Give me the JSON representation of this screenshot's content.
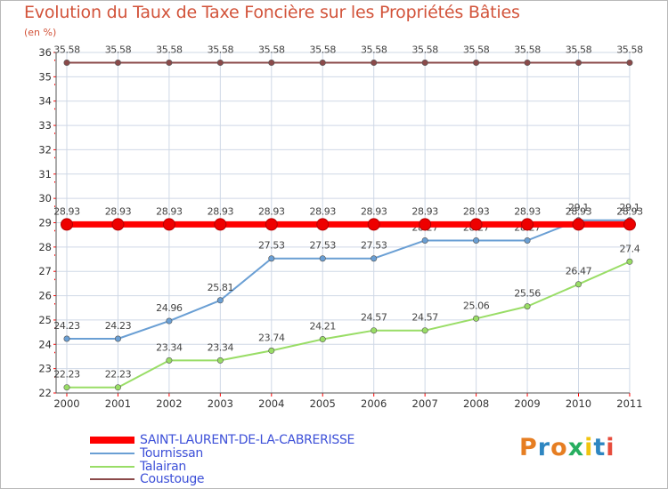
{
  "title": "Evolution du Taux de Taxe Foncière sur les Propriétés Bâties",
  "unit": "(en %)",
  "logo_text": "Proxiti",
  "logo_colors": [
    "#e67e22",
    "#2e86c1",
    "#e67e22",
    "#27ae60",
    "#f1c40f",
    "#2e86c1",
    "#e74c3c"
  ],
  "chart_data": {
    "type": "line",
    "title": "Evolution du Taux de Taxe Foncière sur les Propriétés Bâties",
    "ylabel": "(en %)",
    "xlabel": "",
    "x": [
      "2000",
      "2001",
      "2002",
      "2003",
      "2004",
      "2005",
      "2006",
      "2007",
      "2008",
      "2009",
      "2010",
      "2011"
    ],
    "ylim": [
      22,
      36
    ],
    "yticks": [
      "22",
      "23",
      "24",
      "25",
      "26",
      "27",
      "28",
      "29",
      "30",
      "31",
      "32",
      "33",
      "34",
      "35",
      "36"
    ],
    "grid": true,
    "legend_position": "bottom-left",
    "series": [
      {
        "name": "SAINT-LAURENT-DE-LA-CABRERISSE",
        "color": "#ff0000",
        "values": [
          28.93,
          28.93,
          28.93,
          28.93,
          28.93,
          28.93,
          28.93,
          28.93,
          28.93,
          28.93,
          28.93,
          28.93
        ],
        "labels": [
          "28.93",
          "28.93",
          "28.93",
          "28.93",
          "28.93",
          "28.93",
          "28.93",
          "28.93",
          "28.93",
          "28.93",
          "28.93",
          "28.93"
        ]
      },
      {
        "name": "Tournissan",
        "color": "#6a9fd4",
        "values": [
          24.23,
          24.23,
          24.96,
          25.81,
          27.53,
          27.53,
          27.53,
          28.27,
          28.27,
          28.27,
          29.1,
          29.1
        ],
        "labels": [
          "24.23",
          "24.23",
          "24.96",
          "25.81",
          "27.53",
          "27.53",
          "27.53",
          "28.27",
          "28.27",
          "28.27",
          "29.1",
          "29.1"
        ]
      },
      {
        "name": "Talairan",
        "color": "#99dd66",
        "values": [
          22.23,
          22.23,
          23.34,
          23.34,
          23.74,
          24.21,
          24.57,
          24.57,
          25.06,
          25.56,
          26.47,
          27.4
        ],
        "labels": [
          "22.23",
          "22.23",
          "23.34",
          "23.34",
          "23.74",
          "24.21",
          "24.57",
          "24.57",
          "25.06",
          "25.56",
          "26.47",
          "27.4"
        ]
      },
      {
        "name": "Coustouge",
        "color": "#8b4a4a",
        "values": [
          35.58,
          35.58,
          35.58,
          35.58,
          35.58,
          35.58,
          35.58,
          35.58,
          35.58,
          35.58,
          35.58,
          35.58
        ],
        "labels": [
          "35.58",
          "35.58",
          "35.58",
          "35.58",
          "35.58",
          "35.58",
          "35.58",
          "35.58",
          "35.58",
          "35.58",
          "35.58",
          "35.58"
        ]
      }
    ]
  }
}
